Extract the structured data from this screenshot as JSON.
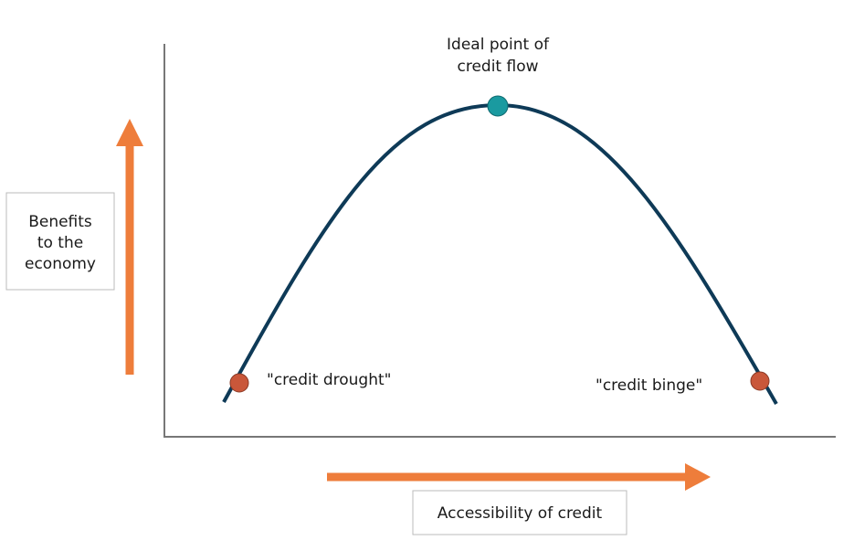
{
  "diagram": {
    "peak_label": [
      "Ideal point of",
      "credit flow"
    ],
    "y_axis_label": [
      "Benefits",
      "to the",
      "economy"
    ],
    "left_point_label": "\"credit drought\"",
    "right_point_label": "\"credit binge\"",
    "x_axis_label": "Accessibility of credit"
  }
}
